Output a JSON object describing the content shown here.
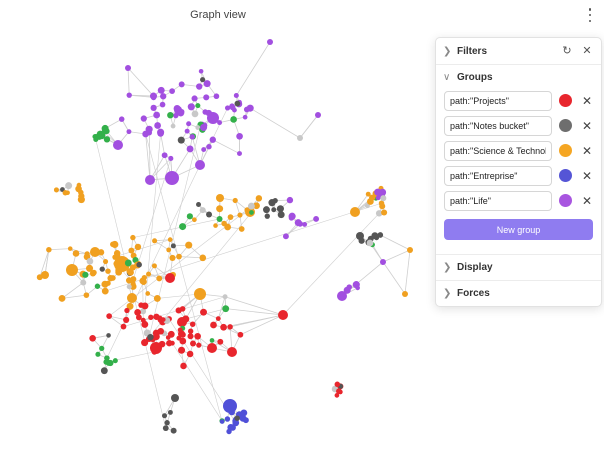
{
  "window": {
    "title": "Graph view",
    "menu_icon": "more-vertical-icon"
  },
  "panel": {
    "filters_label": "Filters",
    "groups_label": "Groups",
    "display_label": "Display",
    "forces_label": "Forces",
    "new_group_label": "New group",
    "accent_color": "#8f7cf0",
    "groups": [
      {
        "query": "path:\"Projects\"",
        "color": "#e8262d"
      },
      {
        "query": "path:\"Notes bucket\"",
        "color": "#6e6e6e"
      },
      {
        "query": "path:\"Science & Technology\"",
        "color": "#f5a623"
      },
      {
        "query": "path:\"Entreprise\"",
        "color": "#5555d6"
      },
      {
        "query": "path:\"Life\"",
        "color": "#a855e0"
      }
    ]
  },
  "graph": {
    "node_colors": {
      "projects": "#e8262d",
      "notes": "#555555",
      "science": "#f0a020",
      "entreprise": "#5050d8",
      "life": "#a24fe0",
      "green": "#33b04a",
      "other": "#c8c8c8",
      "edge": "#cfcfcf"
    }
  }
}
